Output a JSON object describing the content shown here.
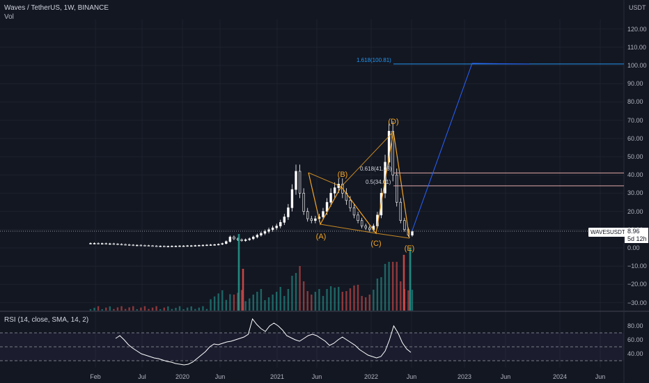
{
  "header": {
    "title": "Waves / TetherUS, 1W, BINANCE",
    "volume_label": "Vol"
  },
  "rsi": {
    "label": "RSI (14, close, SMA, 14, 2)",
    "ticks": [
      "80.00",
      "60.00",
      "40.00"
    ]
  },
  "price_axis": {
    "unit": "USDT",
    "ticks": [
      "120.00",
      "110.00",
      "100.00",
      "90.00",
      "80.00",
      "70.00",
      "60.00",
      "50.00",
      "40.00",
      "30.00",
      "20.00",
      "10.00",
      "0.00",
      "−10.00",
      "−20.00",
      "−30.00"
    ]
  },
  "time_axis": {
    "ticks": [
      "Feb",
      "Jul",
      "2020",
      "Jun",
      "2021",
      "Jun",
      "2022",
      "Jun",
      "2023",
      "Jun",
      "2024",
      "Jun"
    ]
  },
  "last_price": {
    "symbol": "WAVESUSDT",
    "price": "8.96",
    "countdown": "5d 12h"
  },
  "fib": [
    {
      "label": "1.618(100.81)",
      "value": 100.81,
      "color": "#2196f3"
    },
    {
      "label": "0.618(41.06)",
      "value": 41.06,
      "color": "#e0a8a8"
    },
    {
      "label": "0.5(34.01)",
      "value": 34.01,
      "color": "#e0a8a8"
    }
  ],
  "waves": [
    {
      "label": "(A)",
      "value": 15
    },
    {
      "label": "(B)",
      "value": 35
    },
    {
      "label": "(C)",
      "value": 10
    },
    {
      "label": "(D)",
      "value": 64
    },
    {
      "label": "(E)",
      "value": 3.5
    }
  ],
  "colors": {
    "up": "#26a69a",
    "down": "#ef5350",
    "wave": "#f5a623",
    "projection": "#2962ff",
    "background": "#131722"
  },
  "chart_data": {
    "type": "candlestick",
    "ylim": [
      -35,
      125
    ],
    "rsi_ylim": [
      20,
      100
    ],
    "rsi_bands": [
      70,
      50,
      30
    ],
    "series": [
      {
        "name": "WAVESUSDT",
        "close": [
          2.5,
          2.5,
          2.4,
          2.4,
          2.3,
          2.3,
          2.2,
          2.0,
          1.9,
          1.8,
          1.6,
          1.5,
          1.5,
          1.4,
          1.3,
          1.2,
          1.1,
          1.0,
          1.0,
          0.9,
          0.9,
          1.0,
          1.0,
          1.1,
          1.1,
          1.2,
          1.2,
          1.3,
          1.4,
          1.5,
          1.6,
          1.7,
          1.8,
          2.0,
          2.4,
          3.5,
          6,
          5,
          4.5,
          4,
          4.5,
          5,
          6,
          7,
          8,
          9,
          10,
          11,
          12,
          14,
          17,
          22,
          32,
          42,
          30,
          20,
          16,
          15,
          16,
          17,
          20,
          25,
          30,
          33,
          35,
          30,
          26,
          22,
          18,
          15,
          12,
          11,
          10,
          12,
          18,
          30,
          47,
          64,
          40,
          25,
          15,
          10,
          7,
          8.96
        ]
      }
    ],
    "rsi": [
      62,
      66,
      60,
      53,
      48,
      44,
      40,
      38,
      36,
      34,
      33,
      31,
      29,
      28,
      26,
      25,
      24,
      25,
      28,
      33,
      38,
      43,
      50,
      54,
      53,
      55,
      57,
      58,
      60,
      62,
      64,
      68,
      90,
      82,
      76,
      72,
      80,
      84,
      80,
      74,
      66,
      63,
      60,
      58,
      62,
      66,
      68,
      66,
      62,
      58,
      52,
      55,
      60,
      64,
      60,
      56,
      52,
      46,
      42,
      38,
      36,
      34,
      36,
      44,
      60,
      80,
      70,
      56,
      47,
      42
    ]
  }
}
